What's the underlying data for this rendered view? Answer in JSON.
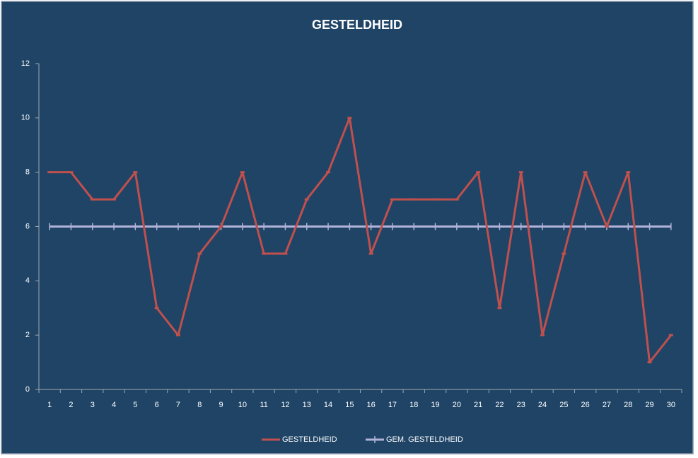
{
  "chart_data": {
    "type": "line",
    "title": "GESTELDHEID",
    "categories": [
      "1",
      "2",
      "3",
      "4",
      "5",
      "6",
      "7",
      "8",
      "9",
      "10",
      "11",
      "12",
      "13",
      "14",
      "15",
      "16",
      "17",
      "18",
      "19",
      "20",
      "21",
      "22",
      "23",
      "24",
      "25",
      "26",
      "27",
      "28",
      "29",
      "30"
    ],
    "series": [
      {
        "name": "GESTELDHEID",
        "color": "#c0504d",
        "values": [
          8,
          8,
          7,
          7,
          8,
          3,
          2,
          5,
          6,
          8,
          5,
          5,
          7,
          8,
          10,
          5,
          7,
          7,
          7,
          7,
          8,
          3,
          8,
          2,
          5,
          8,
          6,
          8,
          1,
          2
        ]
      },
      {
        "name": "GEM. GESTELDHEID",
        "color": "#b3b3d9",
        "values": [
          6,
          6,
          6,
          6,
          6,
          6,
          6,
          6,
          6,
          6,
          6,
          6,
          6,
          6,
          6,
          6,
          6,
          6,
          6,
          6,
          6,
          6,
          6,
          6,
          6,
          6,
          6,
          6,
          6,
          6
        ]
      }
    ],
    "ylim": [
      0,
      12
    ],
    "yticks": [
      0,
      2,
      4,
      6,
      8,
      10,
      12
    ],
    "grid": false,
    "legend": "bottom"
  }
}
